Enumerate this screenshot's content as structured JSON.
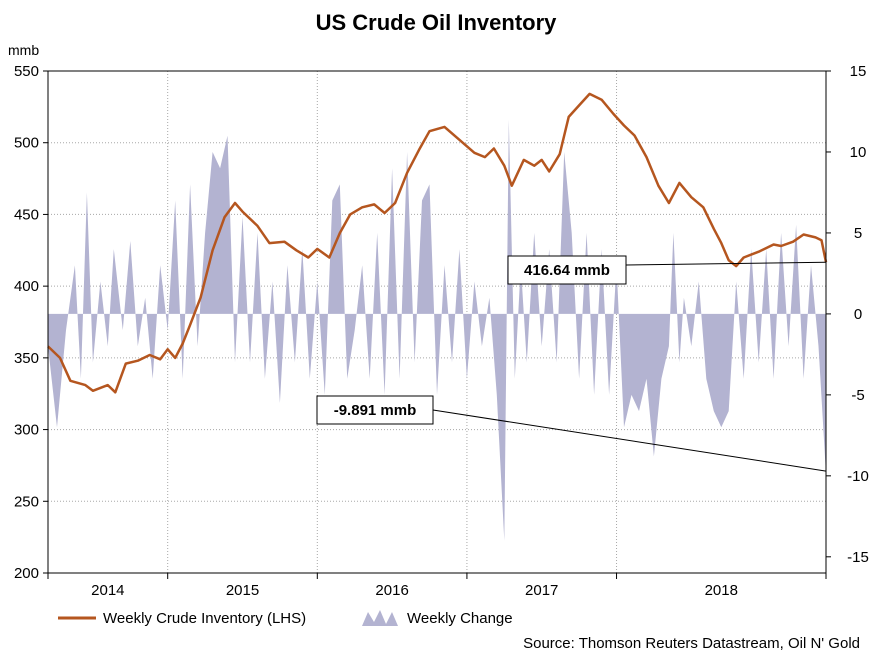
{
  "chart_data": {
    "type": "line+area",
    "title": "US Crude Oil Inventory",
    "left_axis": {
      "unit": "mmb",
      "min": 200,
      "max": 550,
      "ticks": [
        200,
        250,
        300,
        350,
        400,
        450,
        500,
        550
      ]
    },
    "right_axis": {
      "min": -16,
      "max": 15,
      "ticks": [
        15,
        10,
        5,
        0,
        -5,
        -10,
        -15
      ]
    },
    "x_axis": {
      "labels": [
        "2014",
        "2015",
        "2016",
        "2017",
        "2018"
      ]
    },
    "grid": true,
    "series": [
      {
        "name": "Weekly Crude Inventory (LHS)",
        "type": "line",
        "axis": "left",
        "color": "#b5561f",
        "points": [
          [
            2013.7,
            358
          ],
          [
            2013.78,
            350
          ],
          [
            2013.85,
            334
          ],
          [
            2013.95,
            331
          ],
          [
            2014.0,
            327
          ],
          [
            2014.1,
            331
          ],
          [
            2014.15,
            326
          ],
          [
            2014.22,
            346
          ],
          [
            2014.3,
            348
          ],
          [
            2014.38,
            352
          ],
          [
            2014.45,
            349
          ],
          [
            2014.5,
            356
          ],
          [
            2014.55,
            350
          ],
          [
            2014.6,
            360
          ],
          [
            2014.65,
            373
          ],
          [
            2014.72,
            392
          ],
          [
            2014.8,
            425
          ],
          [
            2014.88,
            448
          ],
          [
            2014.95,
            458
          ],
          [
            2015.0,
            452
          ],
          [
            2015.1,
            442
          ],
          [
            2015.18,
            430
          ],
          [
            2015.28,
            431
          ],
          [
            2015.36,
            425
          ],
          [
            2015.44,
            420
          ],
          [
            2015.5,
            426
          ],
          [
            2015.58,
            420
          ],
          [
            2015.65,
            437
          ],
          [
            2015.72,
            450
          ],
          [
            2015.8,
            455
          ],
          [
            2015.88,
            457
          ],
          [
            2015.95,
            451
          ],
          [
            2016.02,
            458
          ],
          [
            2016.1,
            479
          ],
          [
            2016.18,
            495
          ],
          [
            2016.25,
            508
          ],
          [
            2016.35,
            511
          ],
          [
            2016.45,
            502
          ],
          [
            2016.55,
            493
          ],
          [
            2016.62,
            490
          ],
          [
            2016.68,
            496
          ],
          [
            2016.75,
            484
          ],
          [
            2016.8,
            470
          ],
          [
            2016.88,
            488
          ],
          [
            2016.95,
            484
          ],
          [
            2017.0,
            488
          ],
          [
            2017.05,
            480
          ],
          [
            2017.12,
            492
          ],
          [
            2017.18,
            518
          ],
          [
            2017.25,
            526
          ],
          [
            2017.32,
            534
          ],
          [
            2017.4,
            530
          ],
          [
            2017.48,
            520
          ],
          [
            2017.55,
            512
          ],
          [
            2017.62,
            505
          ],
          [
            2017.7,
            490
          ],
          [
            2017.78,
            470
          ],
          [
            2017.85,
            458
          ],
          [
            2017.92,
            472
          ],
          [
            2018.0,
            462
          ],
          [
            2018.08,
            455
          ],
          [
            2018.15,
            440
          ],
          [
            2018.2,
            430
          ],
          [
            2018.25,
            418
          ],
          [
            2018.3,
            414
          ],
          [
            2018.35,
            420
          ],
          [
            2018.45,
            424
          ],
          [
            2018.55,
            429
          ],
          [
            2018.6,
            428
          ],
          [
            2018.68,
            431
          ],
          [
            2018.75,
            436
          ],
          [
            2018.83,
            434
          ],
          [
            2018.87,
            432
          ],
          [
            2018.9,
            416.64
          ]
        ]
      },
      {
        "name": "Weekly Change",
        "type": "area",
        "axis": "right",
        "color": "#b3b3d1",
        "points": [
          [
            2013.7,
            -2
          ],
          [
            2013.76,
            -7
          ],
          [
            2013.82,
            -1
          ],
          [
            2013.88,
            3
          ],
          [
            2013.92,
            -4
          ],
          [
            2013.96,
            7.5
          ],
          [
            2014.0,
            -3
          ],
          [
            2014.05,
            2
          ],
          [
            2014.1,
            -2
          ],
          [
            2014.14,
            4
          ],
          [
            2014.2,
            -1
          ],
          [
            2014.25,
            4.5
          ],
          [
            2014.3,
            -2
          ],
          [
            2014.35,
            1
          ],
          [
            2014.4,
            -4
          ],
          [
            2014.45,
            3
          ],
          [
            2014.5,
            -1
          ],
          [
            2014.55,
            7
          ],
          [
            2014.6,
            -4
          ],
          [
            2014.65,
            8
          ],
          [
            2014.7,
            -2
          ],
          [
            2014.75,
            5
          ],
          [
            2014.8,
            10
          ],
          [
            2014.85,
            9
          ],
          [
            2014.9,
            11
          ],
          [
            2014.95,
            -3
          ],
          [
            2015.0,
            6
          ],
          [
            2015.05,
            -3
          ],
          [
            2015.1,
            5
          ],
          [
            2015.15,
            -4
          ],
          [
            2015.2,
            2
          ],
          [
            2015.25,
            -5.5
          ],
          [
            2015.3,
            3
          ],
          [
            2015.35,
            -3
          ],
          [
            2015.4,
            4
          ],
          [
            2015.45,
            -4
          ],
          [
            2015.5,
            2
          ],
          [
            2015.55,
            -5
          ],
          [
            2015.6,
            7
          ],
          [
            2015.65,
            8
          ],
          [
            2015.7,
            -4
          ],
          [
            2015.75,
            -1
          ],
          [
            2015.8,
            3
          ],
          [
            2015.85,
            -4
          ],
          [
            2015.9,
            5
          ],
          [
            2015.95,
            -5
          ],
          [
            2016.0,
            9
          ],
          [
            2016.05,
            -4
          ],
          [
            2016.1,
            10
          ],
          [
            2016.15,
            -3
          ],
          [
            2016.2,
            7
          ],
          [
            2016.25,
            8
          ],
          [
            2016.3,
            -5
          ],
          [
            2016.35,
            3
          ],
          [
            2016.4,
            -3
          ],
          [
            2016.45,
            4
          ],
          [
            2016.5,
            -4
          ],
          [
            2016.55,
            2
          ],
          [
            2016.6,
            -2
          ],
          [
            2016.65,
            1
          ],
          [
            2016.7,
            -5
          ],
          [
            2016.75,
            -14
          ],
          [
            2016.78,
            12
          ],
          [
            2016.82,
            -4
          ],
          [
            2016.86,
            3
          ],
          [
            2016.9,
            -3
          ],
          [
            2016.95,
            5
          ],
          [
            2017.0,
            -2
          ],
          [
            2017.05,
            4
          ],
          [
            2017.1,
            -3
          ],
          [
            2017.15,
            10
          ],
          [
            2017.2,
            5
          ],
          [
            2017.25,
            -4
          ],
          [
            2017.3,
            5
          ],
          [
            2017.35,
            -5
          ],
          [
            2017.4,
            4
          ],
          [
            2017.45,
            -5
          ],
          [
            2017.5,
            3
          ],
          [
            2017.55,
            -7
          ],
          [
            2017.6,
            -5
          ],
          [
            2017.65,
            -6
          ],
          [
            2017.7,
            -4
          ],
          [
            2017.75,
            -8.8
          ],
          [
            2017.8,
            -4
          ],
          [
            2017.85,
            -2
          ],
          [
            2017.88,
            5
          ],
          [
            2017.92,
            -3
          ],
          [
            2017.95,
            1
          ],
          [
            2018.0,
            -2
          ],
          [
            2018.05,
            2
          ],
          [
            2018.1,
            -4
          ],
          [
            2018.15,
            -6
          ],
          [
            2018.2,
            -7
          ],
          [
            2018.25,
            -6
          ],
          [
            2018.3,
            2
          ],
          [
            2018.35,
            -4
          ],
          [
            2018.4,
            4
          ],
          [
            2018.45,
            -3
          ],
          [
            2018.5,
            4
          ],
          [
            2018.55,
            -4
          ],
          [
            2018.6,
            5
          ],
          [
            2018.65,
            -2
          ],
          [
            2018.7,
            5.5
          ],
          [
            2018.75,
            -4
          ],
          [
            2018.8,
            3
          ],
          [
            2018.85,
            -2
          ],
          [
            2018.9,
            -9.891
          ]
        ]
      }
    ],
    "annotations": [
      {
        "label": "416.64 mmb",
        "series": "Weekly Crude Inventory (LHS)",
        "value": 416.64
      },
      {
        "label": "-9.891 mmb",
        "series": "Weekly Change",
        "value": -9.891
      }
    ],
    "source": "Source: Thomson Reuters Datastream, Oil N' Gold"
  }
}
